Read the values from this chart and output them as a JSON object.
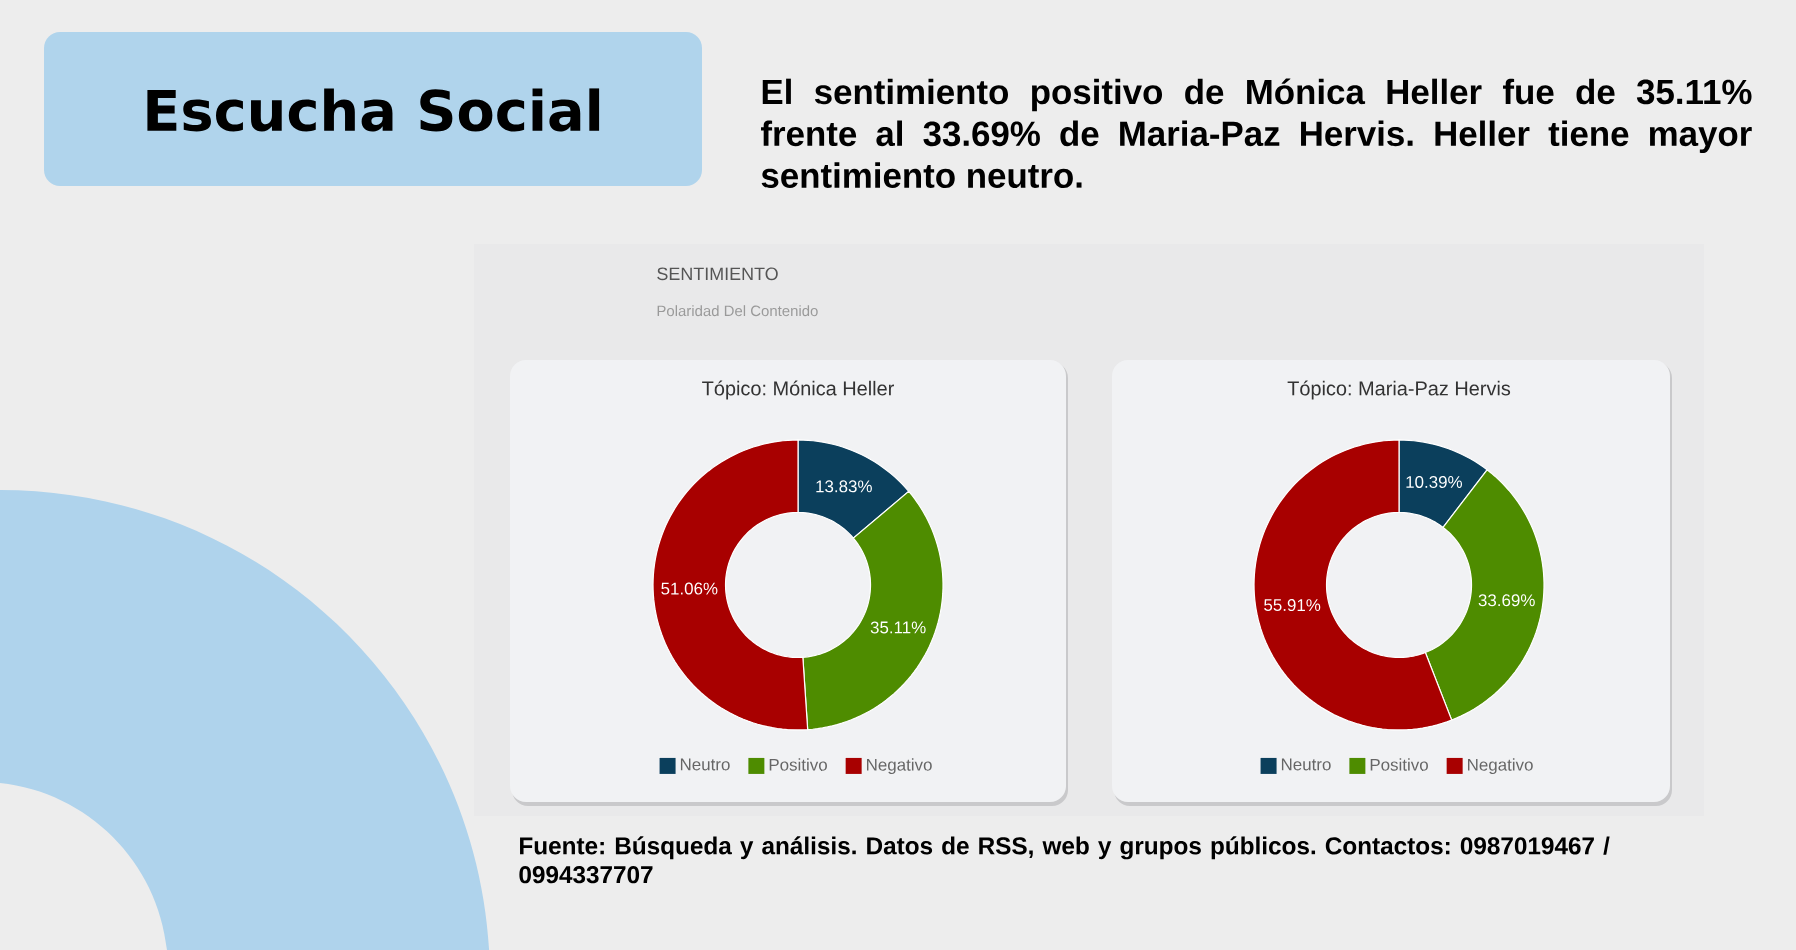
{
  "chart_data": [
    {
      "type": "other",
      "title": "Escucha Social",
      "subtitle": "El sentimiento positivo de Mónica Heller fue de 35.11% frente al 33.69% de Maria-Paz Hervis. Heller tiene mayor sentimiento neutro.",
      "annotations": [
        "SENTIMIENTO",
        "Polaridad Del Contenido",
        "Fuente: Búsqueda y análisis. Datos de RSS, web y grupos públicos. Contactos: 0987019467 / 0994337707"
      ]
    },
    {
      "type": "donut",
      "title": "Tópico: Mónica Heller",
      "categories": [
        "Neutro",
        "Positivo",
        "Negativo"
      ],
      "values": [
        13.83,
        35.11,
        51.06
      ],
      "colors": [
        "#0b3f5c",
        "#4e8c00",
        "#a80000"
      ],
      "value_labels": [
        "13.83%",
        "35.11%",
        "51.06%"
      ],
      "legend": "bottom"
    },
    {
      "type": "donut",
      "title": "Tópico: Maria-Paz Hervis",
      "categories": [
        "Neutro",
        "Positivo",
        "Negativo"
      ],
      "values": [
        10.39,
        33.69,
        55.91
      ],
      "colors": [
        "#0b3f5c",
        "#4e8c00",
        "#a80000"
      ],
      "value_labels": [
        "10.39%",
        "33.69%",
        "55.91%"
      ],
      "legend": "bottom"
    }
  ]
}
